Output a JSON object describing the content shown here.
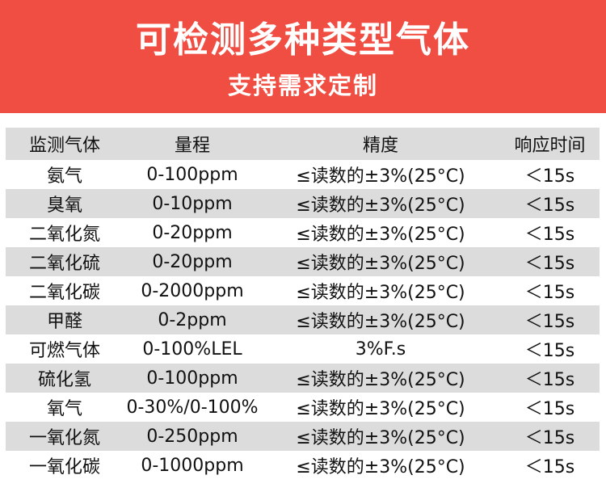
{
  "banner": {
    "title": "可检测多种类型气体",
    "subtitle": "支持需求定制",
    "color": "#f04e42"
  },
  "table": {
    "headers": [
      "监测气体",
      "量程",
      "精度",
      "响应时间"
    ],
    "rows": [
      [
        "氨气",
        "0-100ppm",
        "≤读数的±3%(25°C)",
        "＜15s"
      ],
      [
        "臭氧",
        "0-10ppm",
        "≤读数的±3%(25°C)",
        "＜15s"
      ],
      [
        "二氧化氮",
        "0-20ppm",
        "≤读数的±3%(25°C)",
        "＜15s"
      ],
      [
        "二氧化硫",
        "0-20ppm",
        "≤读数的±3%(25°C)",
        "＜15s"
      ],
      [
        "二氧化碳",
        "0-2000ppm",
        "≤读数的±3%(25°C)",
        "＜15s"
      ],
      [
        "甲醛",
        "0-2ppm",
        "≤读数的±3%(25°C)",
        "＜15s"
      ],
      [
        "可燃气体",
        "0-100%LEL",
        "3%F.s",
        "＜15s"
      ],
      [
        "硫化氢",
        "0-100ppm",
        "≤读数的±3%(25°C)",
        "＜15s"
      ],
      [
        "氧气",
        "0-30%/0-100%",
        "≤读数的±3%(25°C)",
        "＜15s"
      ],
      [
        "一氧化氮",
        "0-250ppm",
        "≤读数的±3%(25°C)",
        "＜15s"
      ],
      [
        "一氧化碳",
        "0-1000ppm",
        "≤读数的±3%(25°C)",
        "＜15s"
      ]
    ]
  }
}
